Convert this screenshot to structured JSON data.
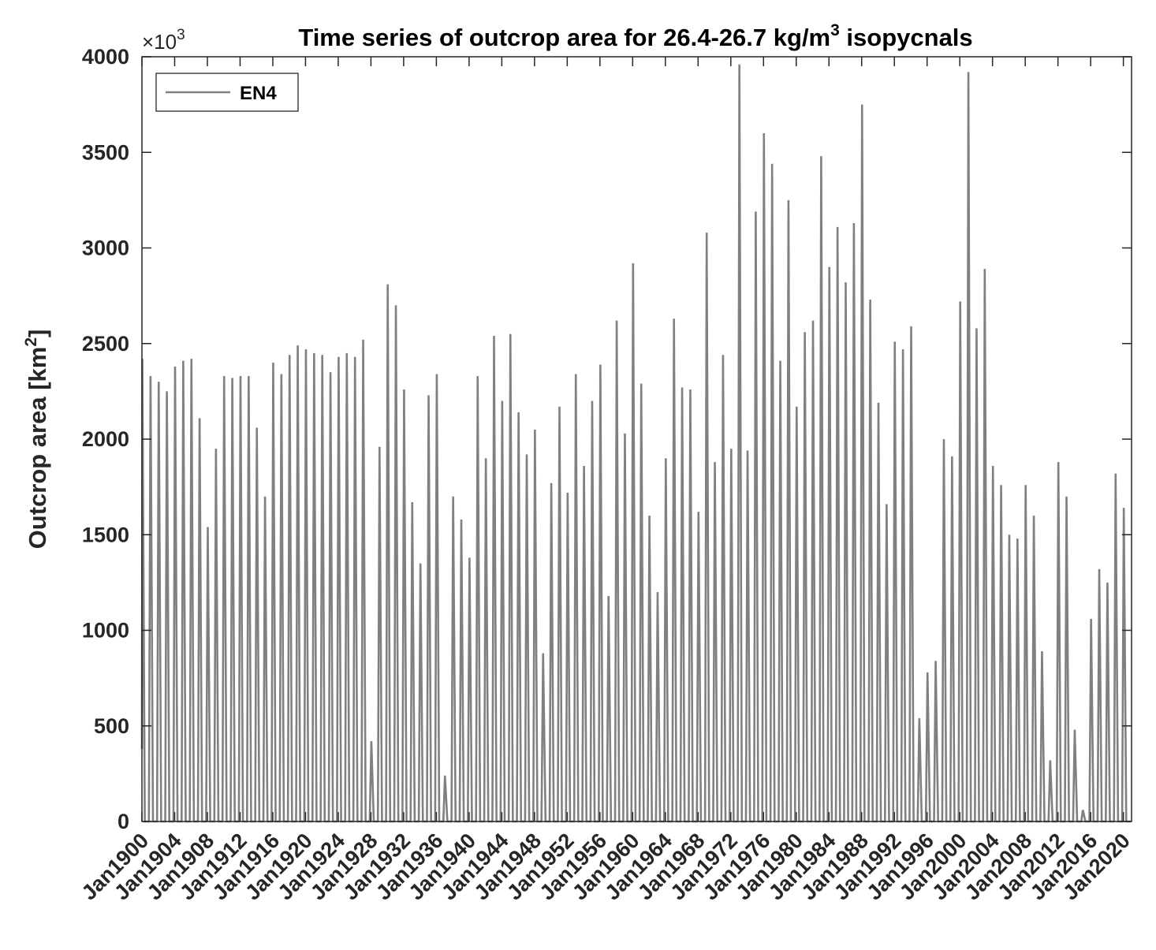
{
  "chart_data": {
    "type": "line",
    "title": "Time series of outcrop area for 26.4-26.7 kg/m³ isopycnals",
    "title_parts": {
      "main": "Time series of outcrop area for 26.4-26.7 kg/m",
      "sup": "3",
      "tail": " isopycnals"
    },
    "exponent": {
      "prefix": "×10",
      "power": "3"
    },
    "xlabel": "",
    "ylabel": {
      "main": "Outcrop area [km",
      "sup": "2",
      "tail": "]"
    },
    "ylim": [
      0,
      4000
    ],
    "xlim": [
      1900,
      2021
    ],
    "yticks": [
      0,
      500,
      1000,
      1500,
      2000,
      2500,
      3000,
      3500,
      4000
    ],
    "xtick_labels": [
      "Jan1900",
      "Jan1904",
      "Jan1908",
      "Jan1912",
      "Jan1916",
      "Jan1920",
      "Jan1924",
      "Jan1928",
      "Jan1932",
      "Jan1936",
      "Jan1940",
      "Jan1944",
      "Jan1948",
      "Jan1952",
      "Jan1956",
      "Jan1960",
      "Jan1964",
      "Jan1968",
      "Jan1972",
      "Jan1976",
      "Jan1980",
      "Jan1984",
      "Jan1988",
      "Jan1992",
      "Jan1996",
      "Jan2000",
      "Jan2004",
      "Jan2008",
      "Jan2012",
      "Jan2016",
      "Jan2020"
    ],
    "xtick_years": [
      1900,
      1904,
      1908,
      1912,
      1916,
      1920,
      1924,
      1928,
      1932,
      1936,
      1940,
      1944,
      1948,
      1952,
      1956,
      1960,
      1964,
      1968,
      1972,
      1976,
      1980,
      1984,
      1988,
      1992,
      1996,
      2000,
      2004,
      2008,
      2012,
      2016,
      2020
    ],
    "grid": false,
    "legend_position": "top-left",
    "series": [
      {
        "name": "EN4",
        "color": "#808080",
        "years": [
          1900,
          1901,
          1902,
          1903,
          1904,
          1905,
          1906,
          1907,
          1908,
          1909,
          1910,
          1911,
          1912,
          1913,
          1914,
          1915,
          1916,
          1917,
          1918,
          1919,
          1920,
          1921,
          1922,
          1923,
          1924,
          1925,
          1926,
          1927,
          1928,
          1929,
          1930,
          1931,
          1932,
          1933,
          1934,
          1935,
          1936,
          1937,
          1938,
          1939,
          1940,
          1941,
          1942,
          1943,
          1944,
          1945,
          1946,
          1947,
          1948,
          1949,
          1950,
          1951,
          1952,
          1953,
          1954,
          1955,
          1956,
          1957,
          1958,
          1959,
          1960,
          1961,
          1962,
          1963,
          1964,
          1965,
          1966,
          1967,
          1968,
          1969,
          1970,
          1971,
          1972,
          1973,
          1974,
          1975,
          1976,
          1977,
          1978,
          1979,
          1980,
          1981,
          1982,
          1983,
          1984,
          1985,
          1986,
          1987,
          1988,
          1989,
          1990,
          1991,
          1992,
          1993,
          1994,
          1995,
          1996,
          1997,
          1998,
          1999,
          2000,
          2001,
          2002,
          2003,
          2004,
          2005,
          2006,
          2007,
          2008,
          2009,
          2010,
          2011,
          2012,
          2013,
          2014,
          2015,
          2016,
          2017,
          2018,
          2019,
          2020
        ],
        "winter_peak": [
          2420,
          2330,
          2300,
          2250,
          2380,
          2410,
          2420,
          2110,
          1540,
          1950,
          2330,
          2320,
          2330,
          2330,
          2060,
          1700,
          2400,
          2340,
          2440,
          2490,
          2470,
          2450,
          2440,
          2350,
          2430,
          2450,
          2430,
          2520,
          420,
          1960,
          2810,
          2700,
          2260,
          1670,
          1350,
          2230,
          2340,
          240,
          1700,
          1580,
          1380,
          2330,
          1900,
          2540,
          2200,
          2550,
          2140,
          1920,
          2050,
          880,
          1770,
          2170,
          1720,
          2340,
          1860,
          2200,
          2390,
          1180,
          2620,
          2030,
          2920,
          2290,
          1600,
          1200,
          1900,
          2630,
          2270,
          2260,
          1620,
          3080,
          1880,
          2440,
          1950,
          3960,
          1940,
          3190,
          3600,
          3440,
          2410,
          3250,
          2170,
          2560,
          2620,
          3480,
          2900,
          3110,
          2820,
          3130,
          3750,
          2730,
          2190,
          1660,
          2510,
          2470,
          2590,
          540,
          780,
          840,
          2000,
          1910,
          2720,
          3920,
          2580,
          2890,
          1860,
          1760,
          1500,
          1480,
          1760,
          1600,
          890,
          320,
          1880,
          1700,
          480,
          60,
          1060,
          1320,
          1250,
          1820,
          1640
        ],
        "summer_min": 0
      }
    ]
  }
}
